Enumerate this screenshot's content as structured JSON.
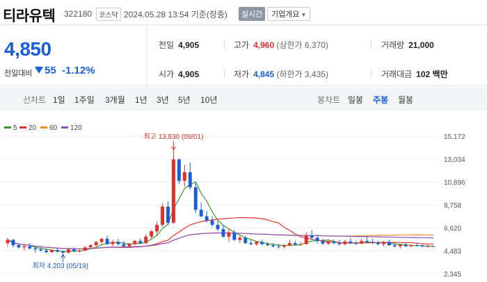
{
  "header": {
    "name": "티라유텍",
    "code": "322180",
    "market": "코스닥",
    "datetime": "2024.05.28 13:54  기준(장중)",
    "realtime_label": "실시간",
    "company_label": "기업개요"
  },
  "summary": {
    "current_price": "4,850",
    "change_label": "전일대비",
    "change_amount": "55",
    "change_percent": "-1.12%",
    "prev_close_label": "전일",
    "prev_close": "4,905",
    "high_label": "고가",
    "high": "4,960",
    "upper_limit": "(상한가 6,370)",
    "volume_label": "거래량",
    "volume": "21,000",
    "open_label": "시가",
    "open": "4,905",
    "low_label": "저가",
    "low": "4,845",
    "lower_limit": "(하한가 3,435)",
    "amount_label": "거래대금",
    "amount": "102 백만"
  },
  "tabs": {
    "line_group": "선차트",
    "line_items": [
      "1일",
      "1주일",
      "3개월",
      "1년",
      "3년",
      "5년",
      "10년"
    ],
    "candle_group": "봉차트",
    "candle_items": [
      "일봉",
      "주봉",
      "월봉"
    ],
    "active": "주봉"
  },
  "chart_data": {
    "type": "candlestick",
    "legend": [
      {
        "name": "5",
        "color": "#3a9a2e"
      },
      {
        "name": "20",
        "color": "#e0302c"
      },
      {
        "name": "60",
        "color": "#f08c20"
      },
      {
        "name": "120",
        "color": "#8a4fc0"
      }
    ],
    "y_ticks": [
      "15,172",
      "13,034",
      "10,896",
      "8,758",
      "6,620",
      "4,483",
      "2,345"
    ],
    "y_tick_values": [
      15172,
      13034,
      10896,
      8758,
      6620,
      4483,
      2345
    ],
    "high_annotation": "최고 13,830 (09/01)",
    "low_annotation": "최저 4,203 (05/19)",
    "up_color": "#e0302c",
    "down_color": "#1a5fd8",
    "candles": [
      [
        5200,
        5700,
        4900,
        5500
      ],
      [
        5500,
        5600,
        4800,
        5000
      ],
      [
        5000,
        5200,
        4700,
        4800
      ],
      [
        4800,
        5100,
        4500,
        4900
      ],
      [
        4900,
        5200,
        4600,
        4700
      ],
      [
        4700,
        4900,
        4300,
        4600
      ],
      [
        4600,
        4800,
        4400,
        4500
      ],
      [
        4500,
        4700,
        4250,
        4350
      ],
      [
        4350,
        4600,
        4300,
        4550
      ],
      [
        4550,
        4700,
        4300,
        4400
      ],
      [
        4400,
        4500,
        4203,
        4300
      ],
      [
        4300,
        4700,
        4250,
        4600
      ],
      [
        4600,
        4800,
        4350,
        4450
      ],
      [
        4450,
        4600,
        4300,
        4500
      ],
      [
        4500,
        4900,
        4450,
        4800
      ],
      [
        4800,
        5100,
        4700,
        5000
      ],
      [
        5000,
        5400,
        4900,
        5300
      ],
      [
        5300,
        5700,
        5100,
        5600
      ],
      [
        5600,
        5900,
        5000,
        5100
      ],
      [
        5100,
        5500,
        4900,
        5300
      ],
      [
        5300,
        5600,
        5000,
        5100
      ],
      [
        5100,
        5400,
        4800,
        4900
      ],
      [
        4900,
        5200,
        4750,
        5100
      ],
      [
        5100,
        5500,
        5000,
        5400
      ],
      [
        5400,
        5600,
        5100,
        5200
      ],
      [
        5200,
        6000,
        5100,
        5800
      ],
      [
        5800,
        6400,
        5600,
        6300
      ],
      [
        6300,
        7200,
        6000,
        6900
      ],
      [
        6900,
        8900,
        6700,
        8600
      ],
      [
        8600,
        9100,
        6900,
        7100
      ],
      [
        7100,
        13830,
        7000,
        13000
      ],
      [
        13000,
        13100,
        10700,
        11000
      ],
      [
        11000,
        12500,
        10500,
        11800
      ],
      [
        11800,
        12700,
        10200,
        10400
      ],
      [
        10400,
        10900,
        8000,
        8300
      ],
      [
        8300,
        9000,
        7600,
        7700
      ],
      [
        7700,
        8200,
        7100,
        7300
      ],
      [
        7300,
        7700,
        6700,
        6900
      ],
      [
        6900,
        7300,
        6300,
        6500
      ],
      [
        6500,
        6900,
        5700,
        5800
      ],
      [
        5800,
        6500,
        5300,
        6200
      ],
      [
        6200,
        6400,
        5400,
        5500
      ],
      [
        5500,
        5900,
        5200,
        5700
      ],
      [
        5700,
        5900,
        5100,
        5200
      ],
      [
        5200,
        5500,
        5000,
        5100
      ],
      [
        5100,
        5400,
        4950,
        5300
      ],
      [
        5300,
        5500,
        5000,
        5100
      ],
      [
        5100,
        5300,
        4900,
        5000
      ],
      [
        5000,
        5200,
        4800,
        4900
      ],
      [
        4900,
        5100,
        4700,
        4850
      ],
      [
        4850,
        5100,
        4700,
        5000
      ],
      [
        5000,
        5500,
        4900,
        5200
      ],
      [
        5200,
        5400,
        5000,
        5050
      ],
      [
        5050,
        5300,
        4950,
        5100
      ],
      [
        5100,
        6200,
        5050,
        5900
      ],
      [
        5900,
        6400,
        5500,
        5700
      ],
      [
        5700,
        6000,
        5200,
        5400
      ],
      [
        5400,
        5600,
        5000,
        5150
      ],
      [
        5150,
        5450,
        5000,
        5300
      ],
      [
        5300,
        5550,
        5100,
        5200
      ],
      [
        5200,
        5500,
        4950,
        5100
      ],
      [
        5100,
        5500,
        5000,
        5350
      ],
      [
        5350,
        5700,
        5100,
        5200
      ],
      [
        5200,
        5400,
        5000,
        5150
      ],
      [
        5150,
        5600,
        5100,
        5400
      ],
      [
        5400,
        5800,
        5200,
        5300
      ],
      [
        5300,
        5600,
        5100,
        5250
      ],
      [
        5250,
        5400,
        5000,
        5100
      ],
      [
        5100,
        5400,
        4900,
        5300
      ],
      [
        5300,
        5500,
        4950,
        5000
      ],
      [
        5000,
        5200,
        4800,
        4900
      ],
      [
        4900,
        5100,
        4700,
        5050
      ],
      [
        5050,
        5200,
        4850,
        4900
      ],
      [
        4900,
        5100,
        4800,
        5000
      ],
      [
        5000,
        5200,
        4850,
        4950
      ],
      [
        4950,
        5100,
        4800,
        4880
      ],
      [
        4880,
        5050,
        4820,
        4900
      ],
      [
        4905,
        4960,
        4845,
        4850
      ]
    ]
  }
}
